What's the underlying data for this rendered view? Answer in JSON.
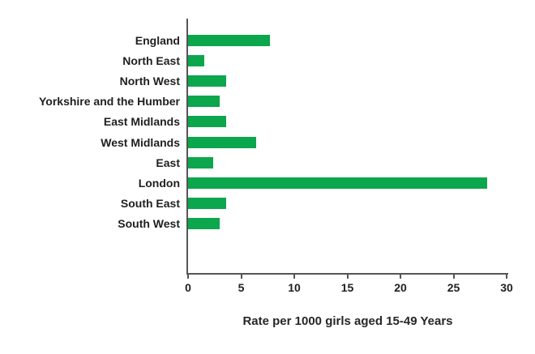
{
  "chart_data": {
    "type": "bar",
    "orientation": "horizontal",
    "title": "",
    "xlabel": "Rate per 1000 girls aged 15-49 Years",
    "ylabel": "",
    "categories": [
      "England",
      "North East",
      "North West",
      "Yorkshire and the Humber",
      "East Midlands",
      "West Midlands",
      "East",
      "London",
      "South East",
      "South West"
    ],
    "values": [
      7.7,
      1.5,
      3.6,
      3.0,
      3.6,
      6.4,
      2.4,
      28.2,
      3.6,
      3.0
    ],
    "xlim": [
      0,
      30
    ],
    "xticks": [
      0,
      5,
      10,
      15,
      20,
      25,
      30
    ],
    "grid": false,
    "legend": null,
    "bar_color": "#0CA64D",
    "axis_color": "#555555",
    "text_color": "#1f1f1f"
  }
}
